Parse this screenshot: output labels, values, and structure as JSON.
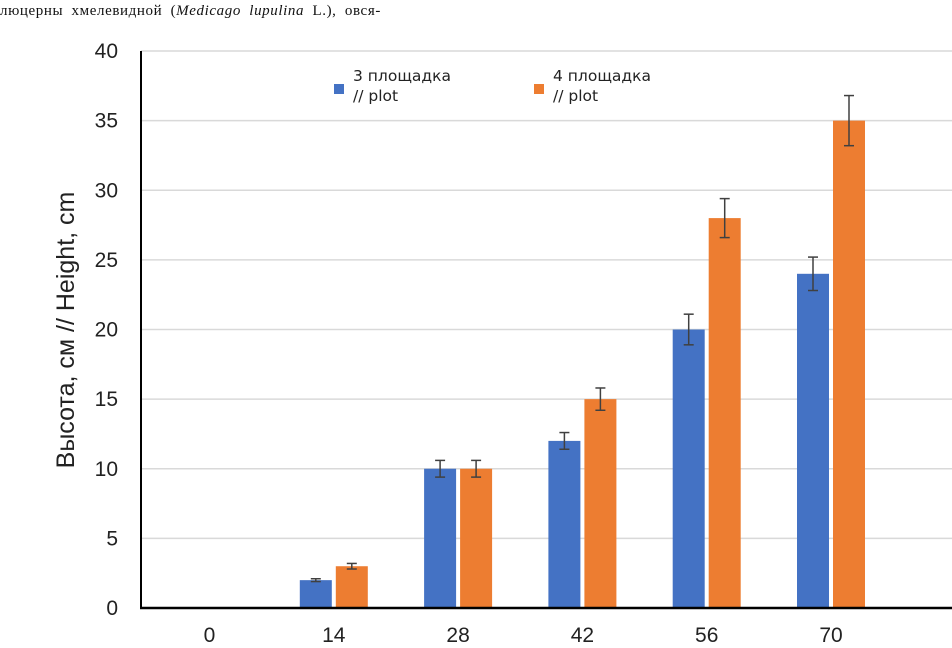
{
  "document": {
    "caption_prefix": "люцерны хмелевидной (",
    "caption_italic": "Medicago lupulina",
    "caption_suffix": " L.),  овся-"
  },
  "chart_data": {
    "type": "bar",
    "title": "",
    "xlabel": "",
    "ylabel": "Высота, см // Height, cm",
    "categories": [
      "0",
      "14",
      "28",
      "42",
      "56",
      "70"
    ],
    "ylim": [
      0,
      40
    ],
    "yticks": [
      0,
      5,
      10,
      15,
      20,
      25,
      30,
      35,
      40
    ],
    "grid": true,
    "legend_position": "top-center",
    "series": [
      {
        "name": "3 площадка // plot",
        "legend_lines": [
          "3 площадка",
          "// plot"
        ],
        "color": "#4472C4",
        "values": [
          0,
          2,
          10,
          12,
          20,
          24
        ],
        "errors": [
          0,
          0.1,
          0.6,
          0.6,
          1.1,
          1.2
        ]
      },
      {
        "name": "4 площадка // plot",
        "legend_lines": [
          "4 площадка",
          "// plot"
        ],
        "color": "#ED7D31",
        "values": [
          0,
          3,
          10,
          15,
          28,
          35
        ],
        "errors": [
          0,
          0.2,
          0.6,
          0.8,
          1.4,
          1.8
        ]
      }
    ]
  }
}
